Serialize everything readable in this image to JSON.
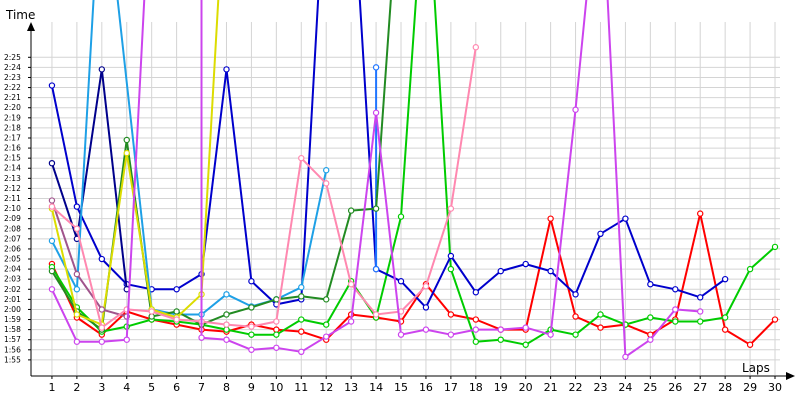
{
  "chart_data": {
    "type": "line",
    "ylabel": "Time",
    "xlabel": "Laps",
    "grid": true,
    "legend": "none",
    "xlim": [
      0.2,
      30.2
    ],
    "ylim": [
      113.5,
      148.5
    ],
    "x_ticks": [
      "1",
      "2",
      "3",
      "4",
      "5",
      "6",
      "7",
      "8",
      "9",
      "10",
      "11",
      "12",
      "13",
      "14",
      "15",
      "16",
      "17",
      "18",
      "19",
      "20",
      "21",
      "22",
      "23",
      "24",
      "25",
      "26",
      "27",
      "28",
      "29",
      "30"
    ],
    "y_ticks": [
      {
        "v": 115,
        "label": "1:55"
      },
      {
        "v": 116,
        "label": "1:56"
      },
      {
        "v": 117,
        "label": "1:57"
      },
      {
        "v": 118,
        "label": "1:58"
      },
      {
        "v": 119,
        "label": "1:59"
      },
      {
        "v": 120,
        "label": "2:00"
      },
      {
        "v": 121,
        "label": "2:01"
      },
      {
        "v": 122,
        "label": "2:02"
      },
      {
        "v": 123,
        "label": "2:03"
      },
      {
        "v": 124,
        "label": "2:04"
      },
      {
        "v": 125,
        "label": "2:05"
      },
      {
        "v": 126,
        "label": "2:06"
      },
      {
        "v": 127,
        "label": "2:07"
      },
      {
        "v": 128,
        "label": "2:08"
      },
      {
        "v": 129,
        "label": "2:09"
      },
      {
        "v": 130,
        "label": "2:10"
      },
      {
        "v": 131,
        "label": "2:11"
      },
      {
        "v": 132,
        "label": "2:12"
      },
      {
        "v": 133,
        "label": "2:13"
      },
      {
        "v": 134,
        "label": "2:14"
      },
      {
        "v": 135,
        "label": "2:15"
      },
      {
        "v": 136,
        "label": "2:16"
      },
      {
        "v": 137,
        "label": "2:17"
      },
      {
        "v": 138,
        "label": "2:18"
      },
      {
        "v": 139,
        "label": "2:19"
      },
      {
        "v": 140,
        "label": "2:20"
      },
      {
        "v": 141,
        "label": "2:21"
      },
      {
        "v": 142,
        "label": "2:22"
      },
      {
        "v": 143,
        "label": "2:23"
      },
      {
        "v": 144,
        "label": "2:24"
      },
      {
        "v": 145,
        "label": "2:25"
      }
    ],
    "series": [
      {
        "color": "#ff0000",
        "values": [
          [
            1,
            124.5
          ],
          [
            2,
            119.2
          ],
          [
            3,
            117.5
          ],
          [
            4,
            119.8
          ],
          [
            5,
            119.0
          ],
          [
            6,
            118.5
          ],
          [
            7,
            118.0
          ],
          [
            8,
            117.8
          ],
          [
            9,
            118.5
          ],
          [
            10,
            118.0
          ],
          [
            11,
            117.8
          ],
          [
            12,
            117.0
          ],
          [
            13,
            119.5
          ],
          [
            14,
            119.2
          ],
          [
            15,
            118.8
          ],
          [
            16,
            122.5
          ],
          [
            17,
            119.5
          ],
          [
            18,
            119.0
          ],
          [
            19,
            118.0
          ],
          [
            20,
            118.0
          ],
          [
            21,
            129.0
          ],
          [
            22,
            119.3
          ],
          [
            23,
            118.2
          ],
          [
            24,
            118.5
          ],
          [
            25,
            117.5
          ],
          [
            26,
            119.0
          ],
          [
            27,
            129.5
          ],
          [
            28,
            118.0
          ],
          [
            29,
            116.5
          ],
          [
            30,
            119.0
          ]
        ]
      },
      {
        "color": "#00cc00",
        "values": [
          [
            1,
            124.2
          ],
          [
            2,
            120.2
          ],
          [
            3,
            117.8
          ],
          [
            4,
            118.3
          ],
          [
            5,
            119.0
          ],
          [
            6,
            118.8
          ],
          [
            7,
            118.5
          ],
          [
            8,
            118.0
          ],
          [
            9,
            117.5
          ],
          [
            10,
            117.5
          ],
          [
            11,
            119.0
          ],
          [
            12,
            118.5
          ],
          [
            13,
            122.8
          ],
          [
            14,
            119.2
          ],
          [
            15,
            129.2
          ],
          [
            16,
            165.0
          ],
          [
            17,
            124.0
          ],
          [
            18,
            116.8
          ],
          [
            19,
            117.0
          ],
          [
            20,
            116.5
          ],
          [
            21,
            118.0
          ],
          [
            22,
            117.5
          ],
          [
            23,
            119.5
          ],
          [
            24,
            118.5
          ],
          [
            25,
            119.2
          ],
          [
            26,
            118.8
          ],
          [
            27,
            118.8
          ],
          [
            28,
            119.2
          ],
          [
            29,
            124.0
          ],
          [
            30,
            126.2
          ]
        ]
      },
      {
        "color": "#0000cc",
        "values": [
          [
            1,
            142.2
          ],
          [
            2,
            130.2
          ],
          [
            3,
            125.0
          ],
          [
            4,
            122.5
          ],
          [
            5,
            122.0
          ],
          [
            6,
            122.0
          ],
          [
            7,
            123.5
          ],
          [
            8,
            143.8
          ],
          [
            9,
            122.8
          ],
          [
            10,
            120.5
          ],
          [
            11,
            121.0
          ],
          [
            12,
            165.0
          ],
          [
            13,
            165.0
          ],
          [
            14,
            124.0
          ],
          [
            15,
            122.8
          ],
          [
            16,
            120.2
          ],
          [
            17,
            125.3
          ],
          [
            18,
            121.7
          ],
          [
            19,
            123.8
          ],
          [
            20,
            124.5
          ],
          [
            21,
            123.8
          ],
          [
            22,
            121.5
          ],
          [
            23,
            127.5
          ],
          [
            24,
            129.0
          ],
          [
            25,
            122.5
          ],
          [
            26,
            122.0
          ],
          [
            27,
            121.2
          ],
          [
            28,
            123.0
          ]
        ]
      },
      {
        "color": "#00008b",
        "values": [
          [
            1,
            134.5
          ],
          [
            2,
            127.0
          ],
          [
            3,
            143.8
          ],
          [
            4,
            122.0
          ]
        ]
      },
      {
        "color": "#1f75ff",
        "values": [
          [
            14,
            144.0
          ],
          [
            14,
            124.0
          ]
        ]
      },
      {
        "color": "#1ea0e6",
        "values": [
          [
            1,
            126.8
          ],
          [
            2,
            122.0
          ],
          [
            3,
            165.0
          ],
          [
            5,
            120.0
          ],
          [
            6,
            119.5
          ],
          [
            7,
            119.5
          ],
          [
            8,
            121.5
          ],
          [
            9,
            120.3
          ],
          [
            10,
            121.0
          ],
          [
            11,
            122.2
          ],
          [
            12,
            133.8
          ]
        ]
      },
      {
        "color": "#228b22",
        "values": [
          [
            1,
            123.8
          ],
          [
            2,
            119.8
          ],
          [
            3,
            118.0
          ],
          [
            4,
            136.8
          ],
          [
            5,
            119.3
          ],
          [
            6,
            119.8
          ],
          [
            7,
            118.5
          ],
          [
            8,
            119.5
          ],
          [
            9,
            120.2
          ],
          [
            10,
            121.0
          ],
          [
            11,
            121.3
          ],
          [
            12,
            121.0
          ],
          [
            13,
            129.8
          ],
          [
            14,
            130.0
          ],
          [
            15,
            165.0
          ]
        ]
      },
      {
        "color": "#dcdc00",
        "values": [
          [
            1,
            130.0
          ],
          [
            2,
            119.5
          ],
          [
            3,
            118.5
          ],
          [
            4,
            135.5
          ],
          [
            5,
            120.0
          ],
          [
            6,
            119.2
          ],
          [
            7,
            121.5
          ],
          [
            8,
            165.0
          ]
        ]
      },
      {
        "color": "#a0548c",
        "values": [
          [
            1,
            130.8
          ],
          [
            2,
            123.5
          ],
          [
            3,
            120.0
          ],
          [
            4,
            119.3
          ]
        ]
      },
      {
        "color": "#ff88b0",
        "values": [
          [
            1,
            130.2
          ],
          [
            2,
            128.0
          ],
          [
            3,
            118.2
          ],
          [
            4,
            120.0
          ],
          [
            5,
            119.8
          ],
          [
            6,
            119.0
          ],
          [
            7,
            118.8
          ],
          [
            8,
            118.5
          ],
          [
            9,
            118.3
          ],
          [
            10,
            118.8
          ],
          [
            11,
            135.0
          ],
          [
            12,
            132.5
          ],
          [
            13,
            122.5
          ],
          [
            14,
            119.5
          ],
          [
            15,
            119.8
          ],
          [
            16,
            122.3
          ],
          [
            17,
            130.0
          ],
          [
            18,
            146.0
          ]
        ]
      },
      {
        "color": "#cc44ee",
        "values": [
          [
            1,
            122.0
          ],
          [
            2,
            116.8
          ],
          [
            3,
            116.8
          ],
          [
            4,
            117.0
          ],
          [
            5,
            165.0
          ],
          [
            7,
            165.0
          ],
          [
            7,
            117.2
          ],
          [
            8,
            117.0
          ],
          [
            9,
            116.0
          ],
          [
            10,
            116.2
          ],
          [
            11,
            115.8
          ],
          [
            12,
            117.3
          ],
          [
            13,
            118.8
          ],
          [
            14,
            139.5
          ],
          [
            15,
            117.5
          ],
          [
            16,
            118.0
          ],
          [
            17,
            117.5
          ],
          [
            18,
            118.0
          ],
          [
            19,
            118.0
          ],
          [
            20,
            118.2
          ],
          [
            21,
            117.5
          ],
          [
            22,
            139.8
          ],
          [
            23,
            165.0
          ],
          [
            24,
            115.3
          ],
          [
            25,
            117.0
          ],
          [
            26,
            120.0
          ],
          [
            27,
            119.8
          ]
        ]
      }
    ]
  }
}
